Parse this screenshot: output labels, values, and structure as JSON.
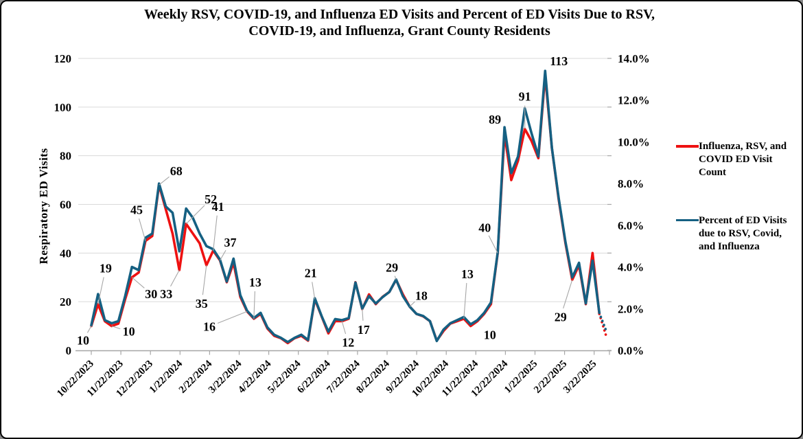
{
  "title": {
    "line1": "Weekly RSV, COVID-19, and Influenza ED Visits and Percent of ED Visits Due to RSV,",
    "line2": "COVID-19, and Influenza, Grant County Residents"
  },
  "left_axis": {
    "title": "Respiratory ED Visits",
    "tick_labels": [
      "0",
      "20",
      "40",
      "60",
      "80",
      "100",
      "120"
    ],
    "min": 0,
    "max": 120
  },
  "right_axis": {
    "tick_labels": [
      "0.0%",
      "2.0%",
      "4.0%",
      "6.0%",
      "8.0%",
      "10.0%",
      "12.0%",
      "14.0%"
    ],
    "min": 0,
    "max": 14
  },
  "x_axis": {
    "tick_labels": [
      "10/22/2023",
      "11/22/2023",
      "12/22/2023",
      "1/22/2024",
      "2/22/2024",
      "3/22/2024",
      "4/22/2024",
      "5/22/2024",
      "6/22/2024",
      "7/22/2024",
      "8/22/2024",
      "9/22/2024",
      "10/22/2024",
      "11/22/2024",
      "12/22/2024",
      "1/22/2025",
      "2/22/2025",
      "3/22/2025"
    ]
  },
  "legend": {
    "items": [
      {
        "label": "Influenza, RSV, and COVID ED Visit Count",
        "color": "#EE1111"
      },
      {
        "label": "Percent of ED Visits due to RSV, Covid, and Influenza",
        "color": "#156082"
      }
    ]
  },
  "colors": {
    "grid": "#D9D9D9",
    "axis": "#A6A6A6",
    "leader": "#A6A6A6",
    "count_line": "#EE1111",
    "percent_line": "#156082"
  },
  "chart_data": {
    "type": "line",
    "title": "Weekly RSV, COVID-19, and Influenza ED Visits and Percent of ED Visits Due to RSV, COVID-19, and Influenza, Grant County Residents",
    "x_unit": "week",
    "x_tick_labels": [
      "10/22/2023",
      "11/22/2023",
      "12/22/2023",
      "1/22/2024",
      "2/22/2024",
      "3/22/2024",
      "4/22/2024",
      "5/22/2024",
      "6/22/2024",
      "7/22/2024",
      "8/22/2024",
      "9/22/2024",
      "10/22/2024",
      "11/22/2024",
      "12/22/2024",
      "1/22/2025",
      "2/22/2025",
      "3/22/2025"
    ],
    "ylabel_left": "Respiratory ED Visits",
    "ylim_left": [
      0,
      120
    ],
    "ylim_right": [
      0,
      14
    ],
    "grid": true,
    "legend_position": "right",
    "final_segment_style": "dotted",
    "series": [
      {
        "name": "Influenza, RSV, and COVID ED Visit Count",
        "axis": "left",
        "color": "#EE1111",
        "values": [
          10,
          19,
          12,
          10,
          11,
          21,
          30,
          32,
          45,
          47,
          68,
          58,
          48,
          33,
          52,
          48,
          44,
          35,
          41,
          37,
          28,
          36,
          22,
          16,
          13,
          15,
          9,
          6,
          5,
          3,
          5,
          6,
          4,
          21,
          14,
          7,
          12,
          12,
          13,
          28,
          17,
          23,
          19,
          22,
          24,
          29,
          23,
          18,
          15,
          14,
          12,
          4,
          8,
          11,
          12,
          13,
          10,
          12,
          15,
          19,
          40,
          89,
          70,
          78,
          91,
          86,
          79,
          113,
          83,
          62,
          44,
          29,
          35,
          19,
          40,
          15,
          6
        ]
      },
      {
        "name": "Percent of ED Visits due to RSV, Covid, and Influenza",
        "axis": "right",
        "color": "#156082",
        "values": [
          1.2,
          2.7,
          1.45,
          1.3,
          1.4,
          2.6,
          4.0,
          3.85,
          5.4,
          5.6,
          8.0,
          6.9,
          6.6,
          4.75,
          6.8,
          6.35,
          5.6,
          5.0,
          4.85,
          4.35,
          3.3,
          4.4,
          2.65,
          1.9,
          1.55,
          1.8,
          1.1,
          0.75,
          0.6,
          0.4,
          0.6,
          0.75,
          0.5,
          2.5,
          1.65,
          0.9,
          1.5,
          1.45,
          1.55,
          3.25,
          2.0,
          2.6,
          2.25,
          2.55,
          2.8,
          3.4,
          2.6,
          2.1,
          1.75,
          1.65,
          1.4,
          0.45,
          1.0,
          1.3,
          1.45,
          1.6,
          1.25,
          1.45,
          1.8,
          2.3,
          4.7,
          10.7,
          8.5,
          9.3,
          11.6,
          10.4,
          9.3,
          13.4,
          9.7,
          7.3,
          5.2,
          3.5,
          4.2,
          2.25,
          4.3,
          1.8,
          0.95
        ]
      }
    ],
    "data_labels": [
      {
        "value": 10,
        "index": 0,
        "ox": -12,
        "oy": 21,
        "leader": true
      },
      {
        "value": 19,
        "index": 1,
        "ox": 11,
        "oy": -52,
        "leader": true
      },
      {
        "value": 10,
        "index": 3,
        "ox": 25,
        "oy": 8,
        "leader": true
      },
      {
        "value": 30,
        "index": 6,
        "ox": 28,
        "oy": 24,
        "leader": true
      },
      {
        "value": 45,
        "index": 8,
        "ox": -13,
        "oy": -45,
        "leader": true
      },
      {
        "value": 68,
        "index": 10,
        "ox": 25,
        "oy": -20,
        "leader": true
      },
      {
        "value": 33,
        "index": 13,
        "ox": -19,
        "oy": 35,
        "leader": true
      },
      {
        "value": 52,
        "index": 14,
        "ox": 36,
        "oy": -36,
        "leader": true
      },
      {
        "value": 35,
        "index": 17,
        "ox": -7,
        "oy": 56,
        "leader": true
      },
      {
        "value": 41,
        "index": 18,
        "ox": 7,
        "oy": -64,
        "leader": true
      },
      {
        "value": 37,
        "index": 19,
        "ox": 15,
        "oy": -26,
        "leader": true
      },
      {
        "value": 16,
        "index": 23,
        "ox": -55,
        "oy": 22,
        "leader": true
      },
      {
        "value": 13,
        "index": 24,
        "ox": 2,
        "oy": -53,
        "leader": true
      },
      {
        "value": 21,
        "index": 33,
        "ox": -6,
        "oy": -38,
        "leader": true
      },
      {
        "value": 12,
        "index": 37,
        "ox": 9,
        "oy": 31,
        "leader": true
      },
      {
        "value": 17,
        "index": 40,
        "ox": 2,
        "oy": 30,
        "leader": true
      },
      {
        "value": 29,
        "index": 45,
        "ox": -6,
        "oy": -18,
        "leader": true
      },
      {
        "value": 18,
        "index": 47,
        "ox": 17,
        "oy": -16,
        "leader": true
      },
      {
        "value": 13,
        "index": 55,
        "ox": 5,
        "oy": -65,
        "leader": true
      },
      {
        "value": 10,
        "index": 56,
        "ox": 28,
        "oy": 13,
        "leader": false
      },
      {
        "value": 40,
        "index": 60,
        "ox": -19,
        "oy": -37,
        "leader": true
      },
      {
        "value": 89,
        "index": 61,
        "ox": -14,
        "oy": -21,
        "leader": false
      },
      {
        "value": 91,
        "index": 64,
        "ox": 0,
        "oy": -47,
        "leader": true
      },
      {
        "value": 113,
        "index": 67,
        "ox": 20,
        "oy": -21,
        "leader": false
      },
      {
        "value": 29,
        "index": 71,
        "ox": -17,
        "oy": 54,
        "leader": true
      }
    ]
  }
}
